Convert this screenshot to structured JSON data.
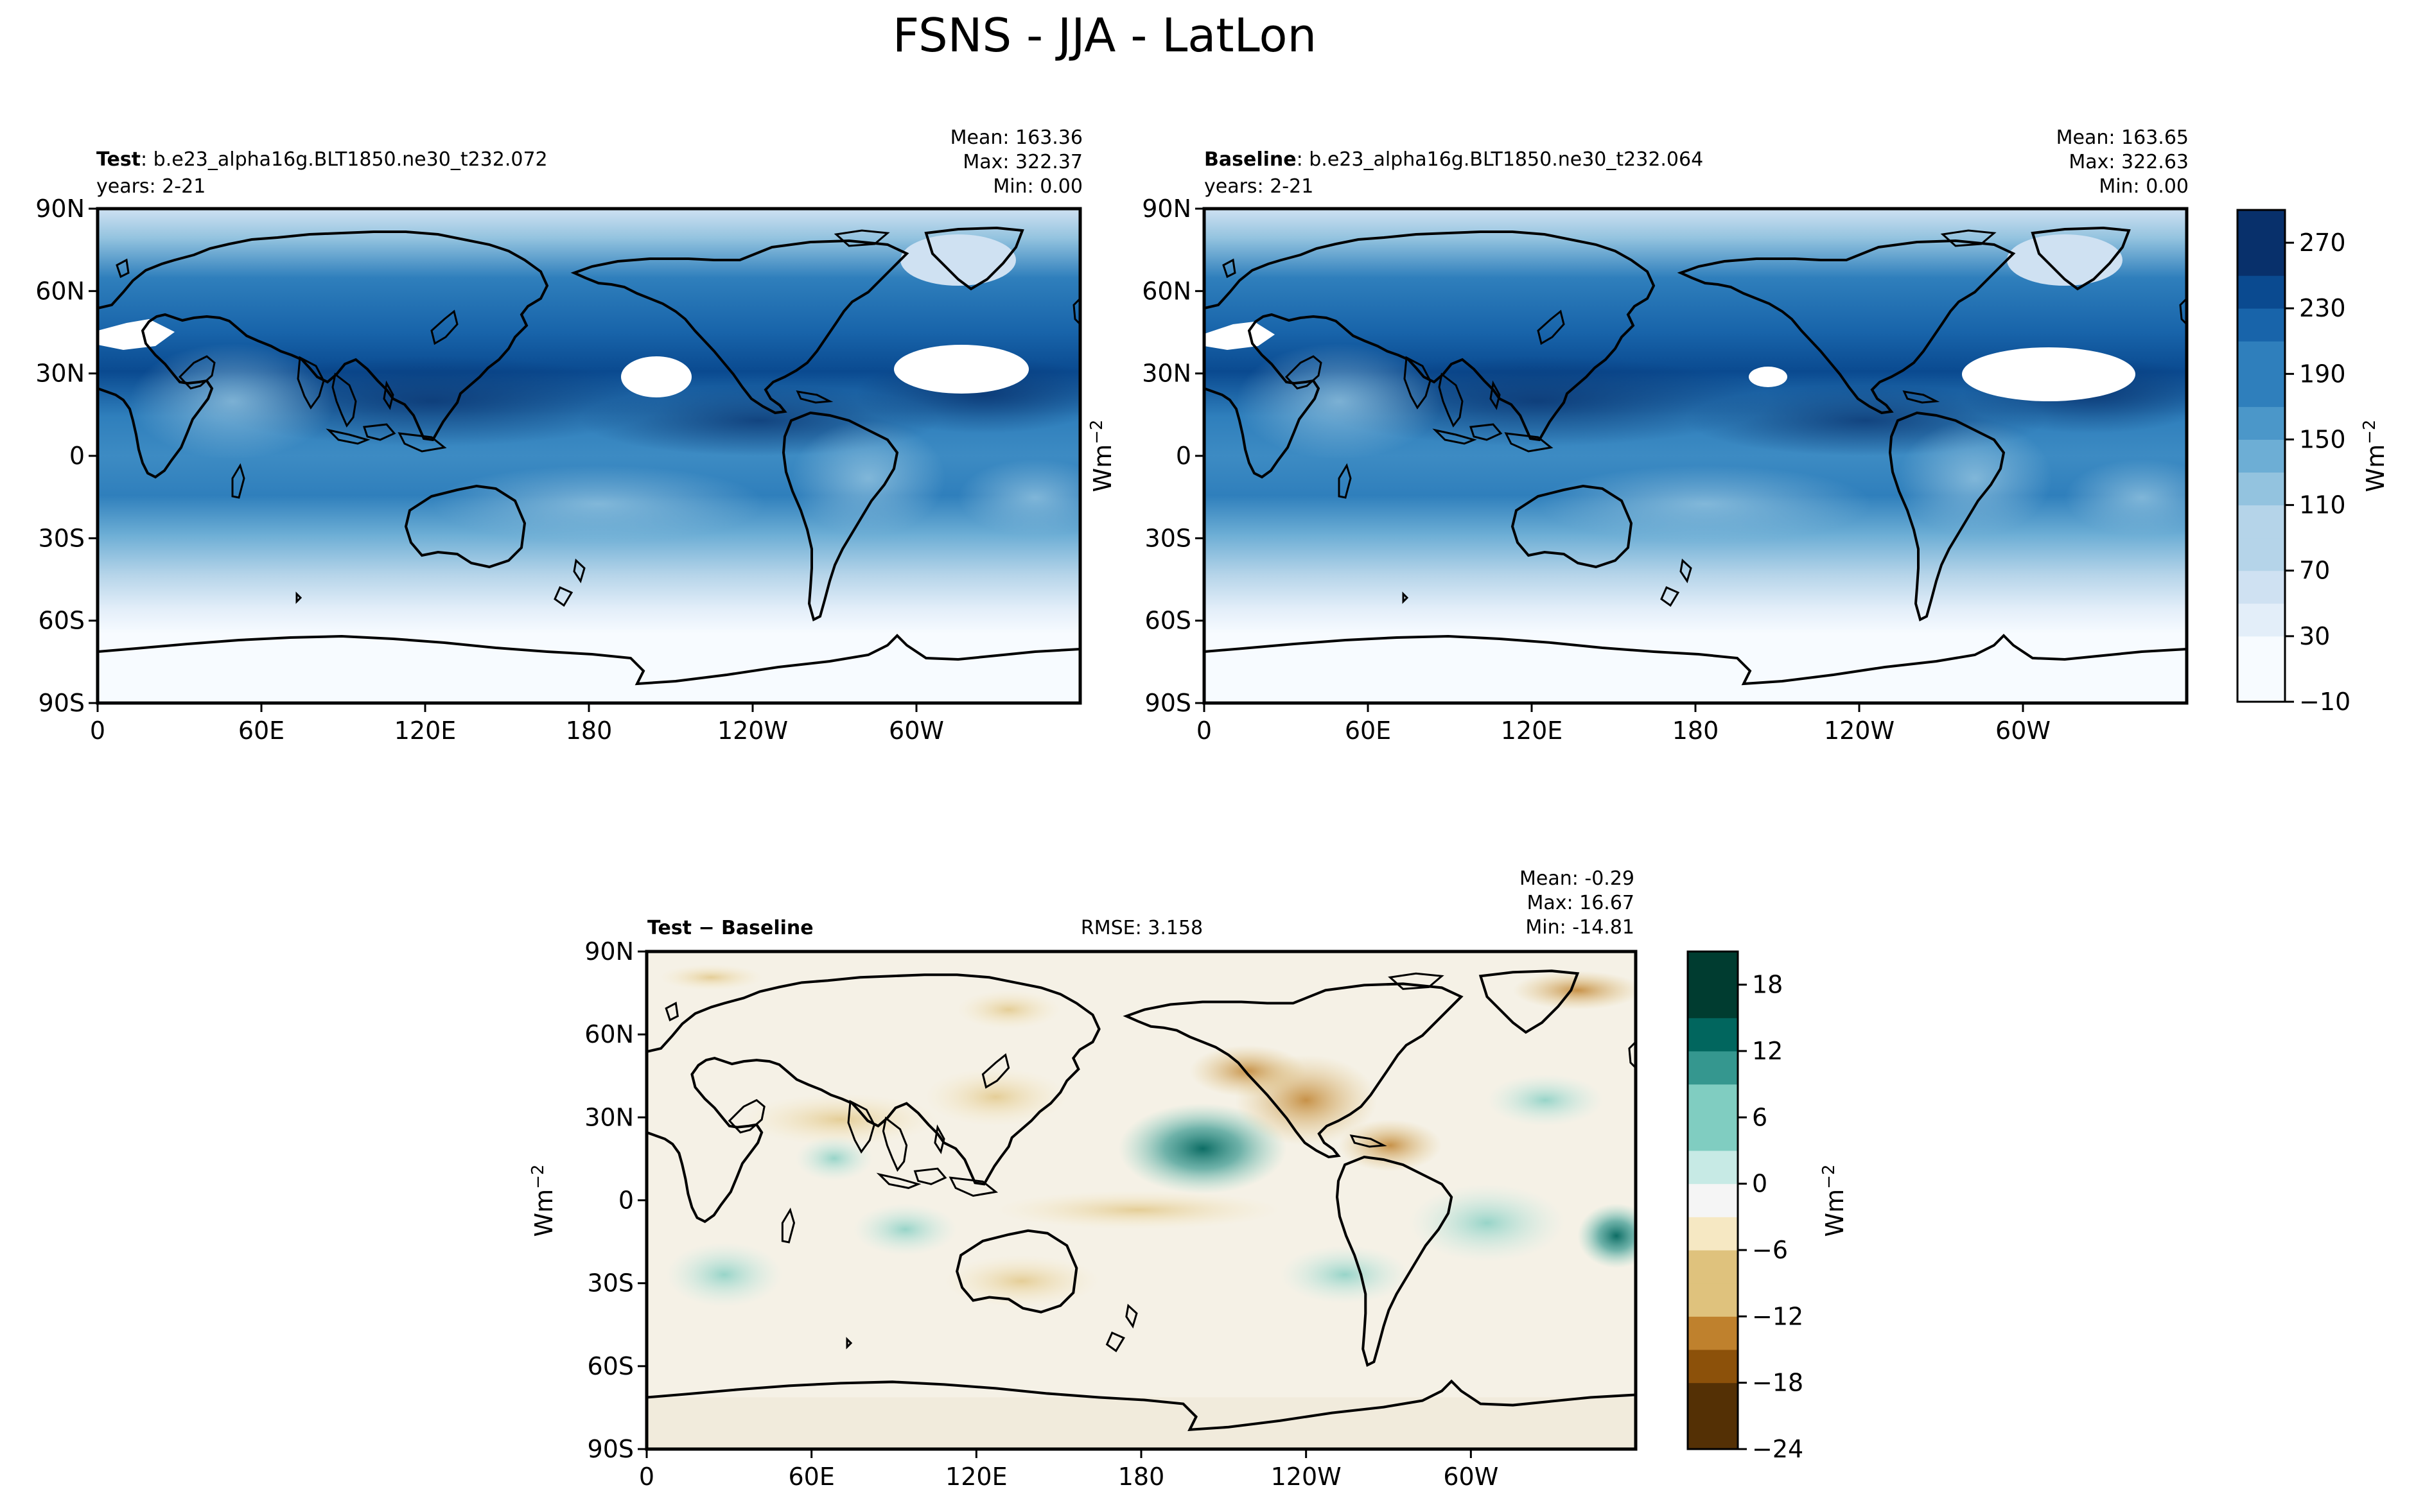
{
  "figure": {
    "title": "FSNS - JJA - LatLon"
  },
  "lat_ticks": [
    "90N",
    "60N",
    "30N",
    "0",
    "30S",
    "60S",
    "90S"
  ],
  "lon_ticks": [
    "0",
    "60E",
    "120E",
    "180",
    "120W",
    "60W"
  ],
  "panels": {
    "test": {
      "label_bold": "Test",
      "label_rest": ": b.e23_alpha16g.BLT1850.ne30_t232.072",
      "years": "years: 2-21",
      "mean": "Mean: 163.36",
      "max": "Max: 322.37",
      "min": "Min:  0.00"
    },
    "baseline": {
      "label_bold": "Baseline",
      "label_rest": ": b.e23_alpha16g.BLT1850.ne30_t232.064",
      "years": "years: 2-21",
      "mean": "Mean: 163.65",
      "max": "Max: 322.63",
      "min": "Min:  0.00"
    },
    "diff": {
      "label_bold": "Test − Baseline",
      "rmse": "RMSE: 3.158",
      "mean": "Mean: -0.29",
      "max": "Max: 16.67",
      "min": "Min: -14.81"
    }
  },
  "units_label": "Wm",
  "units_exponent": "−2",
  "colorbars": {
    "top": {
      "ticks": [
        "270",
        "230",
        "190",
        "150",
        "110",
        "70",
        "30",
        "−10"
      ],
      "range": [
        -10,
        290
      ],
      "colors": [
        "#f7fbff",
        "#e3eef9",
        "#cfe1f2",
        "#b5d4e9",
        "#93c3df",
        "#6daed5",
        "#4b97c9",
        "#2f7fbc",
        "#1864aa",
        "#0a4a90",
        "#08306b"
      ]
    },
    "diff": {
      "ticks": [
        "18",
        "12",
        "6",
        "0",
        "−6",
        "−12",
        "−18",
        "−24"
      ],
      "range": [
        -24,
        21
      ],
      "colors": [
        "#543005",
        "#8c510a",
        "#bf812d",
        "#dfc27d",
        "#f6e8c3",
        "#f5f5f5",
        "#c7eae5",
        "#80cdc1",
        "#35978f",
        "#01665e",
        "#003c30"
      ]
    }
  },
  "chart_data": [
    {
      "type": "heatmap",
      "title": "Test: b.e23_alpha16g.BLT1850.ne30_t232.072",
      "subtitle": "years: 2-21",
      "ylabel": "",
      "x_ticks": [
        "0",
        "60E",
        "120E",
        "180",
        "120W",
        "60W"
      ],
      "y_ticks": [
        "90N",
        "60N",
        "30N",
        "0",
        "30S",
        "60S",
        "90S"
      ],
      "xlim": [
        0,
        360
      ],
      "ylim": [
        -90,
        90
      ],
      "stats": {
        "mean": 163.36,
        "max": 322.37,
        "min": 0.0
      },
      "colorbar_range": [
        -10,
        290
      ]
    },
    {
      "type": "heatmap",
      "title": "Baseline: b.e23_alpha16g.BLT1850.ne30_t232.064",
      "subtitle": "years: 2-21",
      "ylabel": "Wm−2",
      "x_ticks": [
        "0",
        "60E",
        "120E",
        "180",
        "120W",
        "60W"
      ],
      "y_ticks": [
        "90N",
        "60N",
        "30N",
        "0",
        "30S",
        "60S",
        "90S"
      ],
      "xlim": [
        0,
        360
      ],
      "ylim": [
        -90,
        90
      ],
      "stats": {
        "mean": 163.65,
        "max": 322.63,
        "min": 0.0
      },
      "colorbar_ticks": [
        270,
        230,
        190,
        150,
        110,
        70,
        30,
        -10
      ],
      "colorbar_label": "Wm−2"
    },
    {
      "type": "heatmap",
      "title": "Test − Baseline",
      "subtitle": "RMSE: 3.158",
      "ylabel": "Wm−2",
      "x_ticks": [
        "0",
        "60E",
        "120E",
        "180",
        "120W",
        "60W"
      ],
      "y_ticks": [
        "90N",
        "60N",
        "30N",
        "0",
        "30S",
        "60S",
        "90S"
      ],
      "xlim": [
        0,
        360
      ],
      "ylim": [
        -90,
        90
      ],
      "stats": {
        "mean": -0.29,
        "max": 16.67,
        "min": -14.81,
        "rmse": 3.158
      },
      "colorbar_ticks": [
        18,
        12,
        6,
        0,
        -6,
        -12,
        -18,
        -24
      ],
      "colorbar_label": "Wm−2"
    }
  ]
}
